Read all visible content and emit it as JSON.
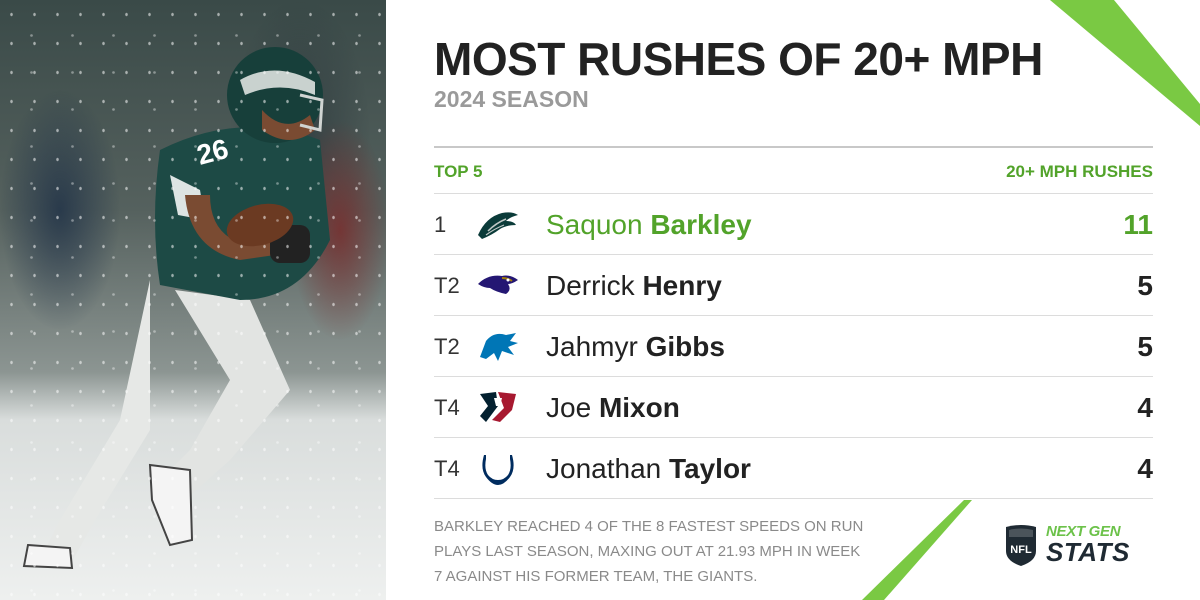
{
  "title": "MOST RUSHES OF 20+ MPH",
  "subtitle": "2024 SEASON",
  "table": {
    "left_header": "TOP 5",
    "right_header": "20+ MPH RUSHES",
    "rows": [
      {
        "rank": "1",
        "first": "Saquon",
        "last": "Barkley",
        "value": "11",
        "team_icon": "eagles-logo-icon"
      },
      {
        "rank": "T2",
        "first": "Derrick",
        "last": "Henry",
        "value": "5",
        "team_icon": "ravens-logo-icon"
      },
      {
        "rank": "T2",
        "first": "Jahmyr",
        "last": "Gibbs",
        "value": "5",
        "team_icon": "lions-logo-icon"
      },
      {
        "rank": "T4",
        "first": "Joe",
        "last": "Mixon",
        "value": "4",
        "team_icon": "texans-logo-icon"
      },
      {
        "rank": "T4",
        "first": "Jonathan",
        "last": "Taylor",
        "value": "4",
        "team_icon": "colts-logo-icon"
      }
    ]
  },
  "footnote": "Barkley reached 4 of the 8 fastest speeds on run plays last season, maxing out at 21.93 mph in Week 7 against his former team, the Giants.",
  "brand": {
    "shield_text": "NFL",
    "next_gen": "NEXT GEN",
    "stats": "STATS"
  },
  "colors": {
    "accent_green": "#52a32a",
    "title_dark": "#222222",
    "subtitle_gray": "#9a9a9a",
    "stripe_green": "#7ac943"
  }
}
